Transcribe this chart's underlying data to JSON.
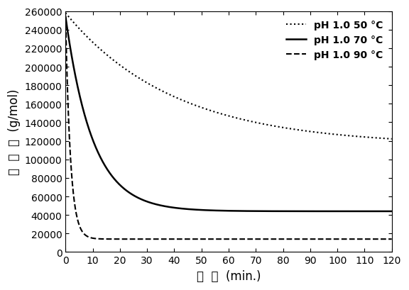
{
  "title": "",
  "xlabel": "时  间  (min.)",
  "ylabel": "分  子  量  (g/mol)",
  "xlim": [
    0,
    120
  ],
  "ylim": [
    0,
    260000
  ],
  "xticks": [
    0,
    10,
    20,
    30,
    40,
    50,
    60,
    70,
    80,
    90,
    100,
    110,
    120
  ],
  "yticks": [
    0,
    20000,
    40000,
    60000,
    80000,
    100000,
    120000,
    140000,
    160000,
    180000,
    200000,
    220000,
    240000,
    260000
  ],
  "legend": [
    {
      "label": "pH 1.0 50 °C",
      "linestyle": "dotted",
      "color": "#000000",
      "lw": 1.5
    },
    {
      "label": "pH 1.0 70 °C",
      "linestyle": "solid",
      "color": "#000000",
      "lw": 1.8
    },
    {
      "label": "pH 1.0 90 °C",
      "linestyle": "dashed",
      "color": "#000000",
      "lw": 1.5
    }
  ],
  "curve_50_params": {
    "A": 143000,
    "k": 0.025,
    "C": 115000
  },
  "curve_70_params": {
    "A": 210000,
    "k": 0.1,
    "C": 44000
  },
  "curve_90_params": {
    "A": 240000,
    "k": 0.55,
    "C": 14000
  },
  "background_color": "#ffffff",
  "axis_color": "#000000",
  "font_size_label": 12,
  "font_size_tick": 10,
  "font_size_legend": 10,
  "legend_loc": "upper right",
  "legend_bold": true
}
